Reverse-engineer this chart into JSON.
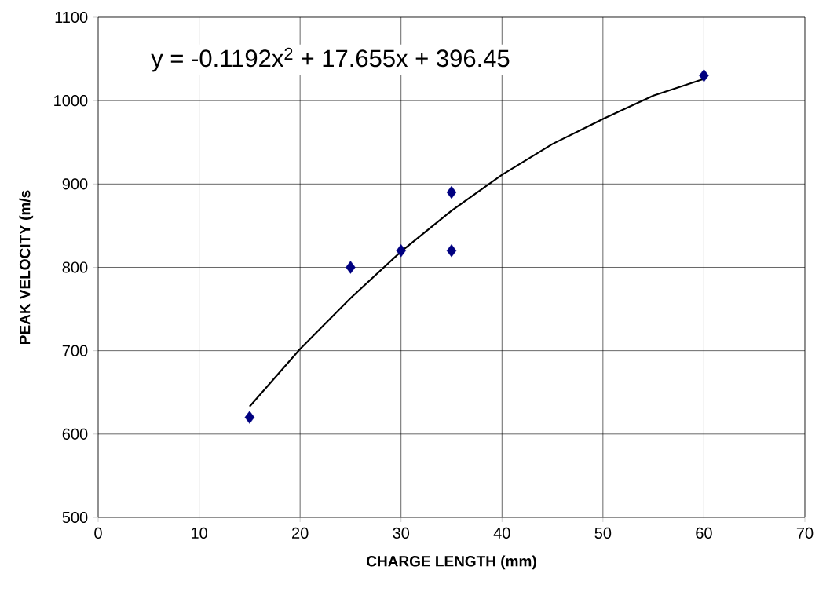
{
  "chart_data": {
    "type": "scatter",
    "xlabel": "CHARGE LENGTH (mm)",
    "ylabel": "PEAK VELOCITY (m/s",
    "xlim": [
      0,
      70
    ],
    "xticks": [
      0,
      10,
      20,
      30,
      40,
      50,
      60,
      70
    ],
    "ylim": [
      500,
      1100
    ],
    "yticks": [
      500,
      600,
      700,
      800,
      900,
      1000,
      1100
    ],
    "grid": true,
    "series": [
      {
        "marker": "diamond",
        "color": "#000080",
        "x": [
          15,
          25,
          30,
          35,
          35,
          60
        ],
        "values": [
          620,
          800,
          820,
          890,
          820,
          1030
        ]
      },
      {
        "type": "line",
        "marker": "none",
        "line_style": "solid",
        "color": "#000000",
        "x": [
          15,
          20,
          25,
          30,
          35,
          40,
          45,
          50,
          55,
          60
        ],
        "values": [
          633,
          702,
          763,
          819,
          868,
          911,
          948,
          978,
          1006,
          1026
        ]
      }
    ],
    "annotations": [
      "y = -0.1192x$^{2}$ + 17.655x + 396.45"
    ]
  }
}
